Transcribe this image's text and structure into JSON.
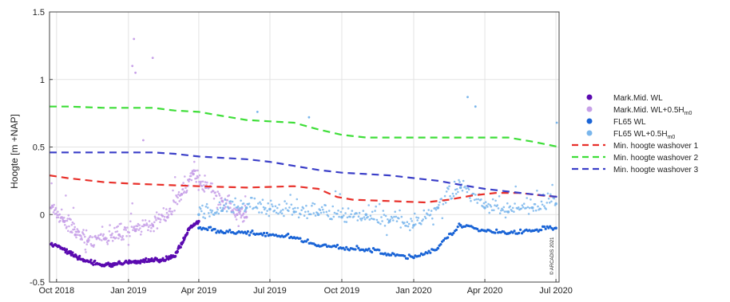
{
  "chart_data": {
    "type": "scatter",
    "ylabel": "Hoogte [m +NAP]",
    "ylim": [
      -0.5,
      1.5
    ],
    "yticks": [
      -0.5,
      0,
      0.5,
      1,
      1.5
    ],
    "xlim": [
      "2018-09-22",
      "2020-07-05"
    ],
    "xticks": [
      {
        "date": "2018-10-01",
        "label": "Oct 2018"
      },
      {
        "date": "2019-01-01",
        "label": "Jan 2019"
      },
      {
        "date": "2019-04-01",
        "label": "Apr 2019"
      },
      {
        "date": "2019-07-01",
        "label": "Jul 2019"
      },
      {
        "date": "2019-10-01",
        "label": "Oct 2019"
      },
      {
        "date": "2020-01-01",
        "label": "Jan 2020"
      },
      {
        "date": "2020-04-01",
        "label": "Apr 2020"
      },
      {
        "date": "2020-07-01",
        "label": "Jul 2020"
      }
    ],
    "grid": true,
    "legend_position": "right-outside",
    "watermark": "© ARCADIS 2021",
    "series": [
      {
        "name": "Mark.Mid. WL",
        "style": "points",
        "color": "#5b0ab0",
        "points": [
          [
            "2018-09-24",
            -0.22
          ],
          [
            "2018-10-08",
            -0.25
          ],
          [
            "2018-10-20",
            -0.3
          ],
          [
            "2018-11-01",
            -0.33
          ],
          [
            "2018-11-15",
            -0.36
          ],
          [
            "2018-12-01",
            -0.38
          ],
          [
            "2018-12-15",
            -0.37
          ],
          [
            "2019-01-01",
            -0.36
          ],
          [
            "2019-01-15",
            -0.35
          ],
          [
            "2019-02-01",
            -0.34
          ],
          [
            "2019-02-15",
            -0.34
          ],
          [
            "2019-03-01",
            -0.31
          ],
          [
            "2019-03-10",
            -0.22
          ],
          [
            "2019-03-20",
            -0.1
          ],
          [
            "2019-04-01",
            -0.05
          ]
        ]
      },
      {
        "name": "Mark.Mid. WL+0.5H",
        "style": "points",
        "color": "#c7a0e8",
        "points": [
          [
            "2018-09-24",
            0.05
          ],
          [
            "2018-10-10",
            -0.05
          ],
          [
            "2018-10-25",
            -0.15
          ],
          [
            "2018-11-10",
            -0.2
          ],
          [
            "2018-12-01",
            -0.18
          ],
          [
            "2018-12-20",
            -0.15
          ],
          [
            "2019-01-10",
            -0.12
          ],
          [
            "2019-02-01",
            -0.08
          ],
          [
            "2019-02-20",
            -0.02
          ],
          [
            "2019-03-10",
            0.15
          ],
          [
            "2019-03-25",
            0.3
          ],
          [
            "2019-04-10",
            0.2
          ],
          [
            "2019-05-01",
            0.1
          ],
          [
            "2019-05-20",
            0.0
          ],
          [
            "2019-06-01",
            -0.02
          ]
        ]
      },
      {
        "name": "FL65 WL",
        "style": "points",
        "color": "#1a64d6",
        "points": [
          [
            "2019-04-01",
            -0.1
          ],
          [
            "2019-05-01",
            -0.13
          ],
          [
            "2019-06-01",
            -0.14
          ],
          [
            "2019-07-01",
            -0.15
          ],
          [
            "2019-08-01",
            -0.17
          ],
          [
            "2019-09-01",
            -0.23
          ],
          [
            "2019-10-01",
            -0.25
          ],
          [
            "2019-11-01",
            -0.26
          ],
          [
            "2019-12-01",
            -0.3
          ],
          [
            "2020-01-01",
            -0.32
          ],
          [
            "2020-02-01",
            -0.25
          ],
          [
            "2020-03-01",
            -0.08
          ],
          [
            "2020-04-01",
            -0.12
          ],
          [
            "2020-05-01",
            -0.14
          ],
          [
            "2020-06-01",
            -0.12
          ],
          [
            "2020-07-01",
            -0.1
          ]
        ]
      },
      {
        "name": "FL65 WL+0.5H",
        "style": "points",
        "color": "#7ab6ec",
        "points": [
          [
            "2019-04-01",
            0.0
          ],
          [
            "2019-05-01",
            0.03
          ],
          [
            "2019-06-01",
            0.05
          ],
          [
            "2019-07-01",
            0.04
          ],
          [
            "2019-08-01",
            0.02
          ],
          [
            "2019-09-01",
            0.0
          ],
          [
            "2019-10-01",
            -0.02
          ],
          [
            "2019-11-01",
            0.0
          ],
          [
            "2019-12-01",
            -0.05
          ],
          [
            "2020-01-01",
            -0.08
          ],
          [
            "2020-02-01",
            0.05
          ],
          [
            "2020-03-01",
            0.2
          ],
          [
            "2020-04-01",
            0.05
          ],
          [
            "2020-05-01",
            0.02
          ],
          [
            "2020-06-01",
            0.05
          ],
          [
            "2020-07-01",
            0.08
          ]
        ]
      },
      {
        "name": "Min. hoogte washover 1",
        "style": "dashed",
        "color": "#e8302a",
        "points": [
          [
            "2018-09-22",
            0.29
          ],
          [
            "2018-10-15",
            0.27
          ],
          [
            "2018-12-01",
            0.24
          ],
          [
            "2019-01-01",
            0.23
          ],
          [
            "2019-02-15",
            0.22
          ],
          [
            "2019-04-01",
            0.21
          ],
          [
            "2019-06-01",
            0.2
          ],
          [
            "2019-08-01",
            0.21
          ],
          [
            "2019-09-01",
            0.19
          ],
          [
            "2019-09-25",
            0.13
          ],
          [
            "2019-10-15",
            0.11
          ],
          [
            "2019-12-01",
            0.1
          ],
          [
            "2020-01-15",
            0.09
          ],
          [
            "2020-02-15",
            0.11
          ],
          [
            "2020-03-15",
            0.14
          ],
          [
            "2020-04-15",
            0.16
          ],
          [
            "2020-05-15",
            0.16
          ],
          [
            "2020-06-15",
            0.14
          ],
          [
            "2020-07-05",
            0.13
          ]
        ]
      },
      {
        "name": "Min. hoogte washover 2",
        "style": "dashed",
        "color": "#3ede38",
        "points": [
          [
            "2018-09-22",
            0.8
          ],
          [
            "2018-10-15",
            0.8
          ],
          [
            "2018-12-01",
            0.79
          ],
          [
            "2019-01-01",
            0.79
          ],
          [
            "2019-02-01",
            0.79
          ],
          [
            "2019-03-01",
            0.77
          ],
          [
            "2019-04-01",
            0.76
          ],
          [
            "2019-05-01",
            0.73
          ],
          [
            "2019-06-01",
            0.7
          ],
          [
            "2019-07-01",
            0.69
          ],
          [
            "2019-08-01",
            0.68
          ],
          [
            "2019-09-01",
            0.63
          ],
          [
            "2019-10-01",
            0.59
          ],
          [
            "2019-11-01",
            0.57
          ],
          [
            "2019-12-01",
            0.57
          ],
          [
            "2020-01-01",
            0.57
          ],
          [
            "2020-02-01",
            0.57
          ],
          [
            "2020-03-01",
            0.57
          ],
          [
            "2020-04-01",
            0.57
          ],
          [
            "2020-05-01",
            0.57
          ],
          [
            "2020-06-01",
            0.54
          ],
          [
            "2020-07-05",
            0.5
          ]
        ]
      },
      {
        "name": "Min. hoogte washover 3",
        "style": "dashed",
        "color": "#3b3fc8",
        "points": [
          [
            "2018-09-22",
            0.46
          ],
          [
            "2018-10-15",
            0.46
          ],
          [
            "2018-12-01",
            0.46
          ],
          [
            "2019-01-01",
            0.46
          ],
          [
            "2019-02-01",
            0.46
          ],
          [
            "2019-03-01",
            0.45
          ],
          [
            "2019-04-01",
            0.43
          ],
          [
            "2019-05-01",
            0.42
          ],
          [
            "2019-06-01",
            0.41
          ],
          [
            "2019-07-01",
            0.39
          ],
          [
            "2019-08-01",
            0.36
          ],
          [
            "2019-09-01",
            0.33
          ],
          [
            "2019-10-01",
            0.31
          ],
          [
            "2019-11-01",
            0.3
          ],
          [
            "2019-12-01",
            0.29
          ],
          [
            "2020-01-01",
            0.27
          ],
          [
            "2020-02-01",
            0.25
          ],
          [
            "2020-03-01",
            0.22
          ],
          [
            "2020-04-01",
            0.19
          ],
          [
            "2020-05-01",
            0.17
          ],
          [
            "2020-06-01",
            0.15
          ],
          [
            "2020-07-05",
            0.13
          ]
        ]
      }
    ],
    "isolated_points": [
      {
        "series": "Mark.Mid. WL+0.5H",
        "points": [
          [
            "2019-01-08",
            1.3
          ],
          [
            "2019-01-06",
            1.1
          ],
          [
            "2019-01-10",
            1.05
          ],
          [
            "2019-02-01",
            1.16
          ],
          [
            "2019-01-20",
            0.55
          ]
        ]
      },
      {
        "series": "FL65 WL+0.5H",
        "points": [
          [
            "2019-06-15",
            0.76
          ],
          [
            "2019-08-20",
            0.72
          ],
          [
            "2020-03-10",
            0.87
          ],
          [
            "2020-03-20",
            0.8
          ],
          [
            "2020-07-02",
            0.68
          ]
        ]
      }
    ]
  },
  "legend": [
    {
      "label": "Mark.Mid. WL",
      "sub": "",
      "kind": "dot",
      "color": "#5b0ab0"
    },
    {
      "label": "Mark.Mid. WL+0.5H",
      "sub": "m0",
      "kind": "dot",
      "color": "#c7a0e8"
    },
    {
      "label": "FL65 WL",
      "sub": "",
      "kind": "dot",
      "color": "#1a64d6"
    },
    {
      "label": "FL65 WL+0.5H",
      "sub": "m0",
      "kind": "dot",
      "color": "#7ab6ec"
    },
    {
      "label": "Min. hoogte washover 1",
      "sub": "",
      "kind": "dash",
      "color": "#e8302a"
    },
    {
      "label": "Min. hoogte washover 2",
      "sub": "",
      "kind": "dash",
      "color": "#3ede38"
    },
    {
      "label": "Min. hoogte washover 3",
      "sub": "",
      "kind": "dash",
      "color": "#3b3fc8"
    }
  ]
}
